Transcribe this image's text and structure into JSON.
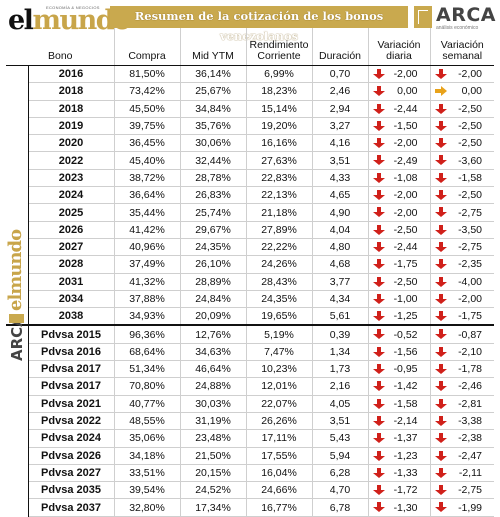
{
  "header": {
    "title": "Resumen de la cotización de los bonos venezolanos",
    "logo_left": "elmundo",
    "logo_left_small": "ECONOMÍA & NEGOCIOS",
    "logo_right": "ARCA",
    "logo_right_sub": "análisis económico"
  },
  "columns": {
    "bono": "Bono",
    "compra": "Compra",
    "mid": "Mid YTM",
    "rend": "Rendimiento Corriente",
    "dur": "Duración",
    "vd": "Variación diaria",
    "vs": "Variación semanal"
  },
  "colors": {
    "down": "#d0201a",
    "flat": "#e8a21a",
    "gold": "#c9a94e"
  },
  "side_logo": {
    "arca": "ARCA",
    "mundo": "elmundo"
  },
  "rows": [
    {
      "bono": "2016",
      "compra": "81,50%",
      "mid": "36,14%",
      "rend": "6,99%",
      "dur": "0,70",
      "vd": "-2,00",
      "vd_dir": "down",
      "vs": "-2,00",
      "vs_dir": "down"
    },
    {
      "bono": "2018",
      "compra": "73,42%",
      "mid": "25,67%",
      "rend": "18,23%",
      "dur": "2,46",
      "vd": "0,00",
      "vd_dir": "down",
      "vs": "0,00",
      "vs_dir": "right"
    },
    {
      "bono": "2018",
      "compra": "45,50%",
      "mid": "34,84%",
      "rend": "15,14%",
      "dur": "2,94",
      "vd": "-2,44",
      "vd_dir": "down",
      "vs": "-2,50",
      "vs_dir": "down"
    },
    {
      "bono": "2019",
      "compra": "39,75%",
      "mid": "35,76%",
      "rend": "19,20%",
      "dur": "3,27",
      "vd": "-1,50",
      "vd_dir": "down",
      "vs": "-2,50",
      "vs_dir": "down"
    },
    {
      "bono": "2020",
      "compra": "36,45%",
      "mid": "30,06%",
      "rend": "16,16%",
      "dur": "4,16",
      "vd": "-2,00",
      "vd_dir": "down",
      "vs": "-2,50",
      "vs_dir": "down"
    },
    {
      "bono": "2022",
      "compra": "45,40%",
      "mid": "32,44%",
      "rend": "27,63%",
      "dur": "3,51",
      "vd": "-2,49",
      "vd_dir": "down",
      "vs": "-3,60",
      "vs_dir": "down"
    },
    {
      "bono": "2023",
      "compra": "38,72%",
      "mid": "28,78%",
      "rend": "22,83%",
      "dur": "4,33",
      "vd": "-1,08",
      "vd_dir": "down",
      "vs": "-1,58",
      "vs_dir": "down"
    },
    {
      "bono": "2024",
      "compra": "36,64%",
      "mid": "26,83%",
      "rend": "22,13%",
      "dur": "4,65",
      "vd": "-2,00",
      "vd_dir": "down",
      "vs": "-2,50",
      "vs_dir": "down"
    },
    {
      "bono": "2025",
      "compra": "35,44%",
      "mid": "25,74%",
      "rend": "21,18%",
      "dur": "4,90",
      "vd": "-2,00",
      "vd_dir": "down",
      "vs": "-2,75",
      "vs_dir": "down"
    },
    {
      "bono": "2026",
      "compra": "41,42%",
      "mid": "29,67%",
      "rend": "27,89%",
      "dur": "4,04",
      "vd": "-2,50",
      "vd_dir": "down",
      "vs": "-3,50",
      "vs_dir": "down"
    },
    {
      "bono": "2027",
      "compra": "40,96%",
      "mid": "24,35%",
      "rend": "22,22%",
      "dur": "4,80",
      "vd": "-2,44",
      "vd_dir": "down",
      "vs": "-2,75",
      "vs_dir": "down"
    },
    {
      "bono": "2028",
      "compra": "37,49%",
      "mid": "26,10%",
      "rend": "24,26%",
      "dur": "4,68",
      "vd": "-1,75",
      "vd_dir": "down",
      "vs": "-2,35",
      "vs_dir": "down"
    },
    {
      "bono": "2031",
      "compra": "41,32%",
      "mid": "28,89%",
      "rend": "28,43%",
      "dur": "3,77",
      "vd": "-2,50",
      "vd_dir": "down",
      "vs": "-4,00",
      "vs_dir": "down"
    },
    {
      "bono": "2034",
      "compra": "37,88%",
      "mid": "24,84%",
      "rend": "24,35%",
      "dur": "4,34",
      "vd": "-1,00",
      "vd_dir": "down",
      "vs": "-2,00",
      "vs_dir": "down"
    },
    {
      "bono": "2038",
      "compra": "34,93%",
      "mid": "20,09%",
      "rend": "19,65%",
      "dur": "5,61",
      "vd": "-1,25",
      "vd_dir": "down",
      "vs": "-1,75",
      "vs_dir": "down"
    },
    {
      "bono": "Pdvsa 2015",
      "compra": "96,36%",
      "mid": "12,76%",
      "rend": "5,19%",
      "dur": "0,39",
      "vd": "-0,52",
      "vd_dir": "down",
      "vs": "-0,87",
      "vs_dir": "down"
    },
    {
      "bono": "Pdvsa 2016",
      "compra": "68,64%",
      "mid": "34,63%",
      "rend": "7,47%",
      "dur": "1,34",
      "vd": "-1,56",
      "vd_dir": "down",
      "vs": "-2,10",
      "vs_dir": "down"
    },
    {
      "bono": "Pdvsa 2017",
      "compra": "51,34%",
      "mid": "46,64%",
      "rend": "10,23%",
      "dur": "1,73",
      "vd": "-0,95",
      "vd_dir": "down",
      "vs": "-1,78",
      "vs_dir": "down"
    },
    {
      "bono": "Pdvsa 2017",
      "compra": "70,80%",
      "mid": "24,88%",
      "rend": "12,01%",
      "dur": "2,16",
      "vd": "-1,42",
      "vd_dir": "down",
      "vs": "-2,46",
      "vs_dir": "down"
    },
    {
      "bono": "Pdvsa 2021",
      "compra": "40,77%",
      "mid": "30,03%",
      "rend": "22,07%",
      "dur": "4,05",
      "vd": "-1,58",
      "vd_dir": "down",
      "vs": "-2,81",
      "vs_dir": "down"
    },
    {
      "bono": "Pdvsa 2022",
      "compra": "48,55%",
      "mid": "31,19%",
      "rend": "26,26%",
      "dur": "3,51",
      "vd": "-2,14",
      "vd_dir": "down",
      "vs": "-3,38",
      "vs_dir": "down"
    },
    {
      "bono": "Pdvsa 2024",
      "compra": "35,06%",
      "mid": "23,48%",
      "rend": "17,11%",
      "dur": "5,43",
      "vd": "-1,37",
      "vd_dir": "down",
      "vs": "-2,38",
      "vs_dir": "down"
    },
    {
      "bono": "Pdvsa 2026",
      "compra": "34,18%",
      "mid": "21,50%",
      "rend": "17,55%",
      "dur": "5,94",
      "vd": "-1,23",
      "vd_dir": "down",
      "vs": "-2,47",
      "vs_dir": "down"
    },
    {
      "bono": "Pdvsa 2027",
      "compra": "33,51%",
      "mid": "20,15%",
      "rend": "16,04%",
      "dur": "6,28",
      "vd": "-1,33",
      "vd_dir": "down",
      "vs": "-2,11",
      "vs_dir": "down"
    },
    {
      "bono": "Pdvsa 2035",
      "compra": "39,54%",
      "mid": "24,52%",
      "rend": "24,66%",
      "dur": "4,70",
      "vd": "-1,72",
      "vd_dir": "down",
      "vs": "-2,75",
      "vs_dir": "down"
    },
    {
      "bono": "Pdvsa 2037",
      "compra": "32,80%",
      "mid": "17,34%",
      "rend": "16,77%",
      "dur": "6,78",
      "vd": "-1,30",
      "vd_dir": "down",
      "vs": "-1,99",
      "vs_dir": "down"
    }
  ]
}
